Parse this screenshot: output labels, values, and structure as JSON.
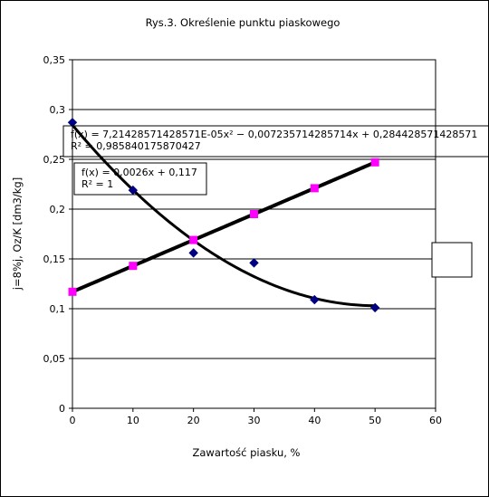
{
  "chart_data": {
    "type": "scatter",
    "title": "Rys.3.    Określenie punktu piaskowego",
    "xlabel": "Zawartość piasku, %",
    "ylabel": "j=8%j, Oz/K  [dm3/kg]",
    "xlim": [
      0,
      60
    ],
    "ylim": [
      0,
      0.35
    ],
    "x_ticks": [
      "0",
      "10",
      "20",
      "30",
      "40",
      "50",
      "60"
    ],
    "y_ticks": [
      "0",
      "0,05",
      "0,1",
      "0,15",
      "0,2",
      "0,25",
      "0,3",
      "0,35"
    ],
    "grid": "horizontal",
    "legend": "right (empty box)",
    "series": [
      {
        "marker": "diamond",
        "color": "#000080",
        "x": [
          0,
          10,
          20,
          30,
          40,
          50
        ],
        "y": [
          0.287,
          0.219,
          0.156,
          0.146,
          0.109,
          0.101
        ],
        "trendline": {
          "type": "polynomial",
          "coefficients": [
            7.21428571428571e-05,
            -0.00723571428571429,
            0.284428571428571
          ],
          "equation": "f(x) = 7,21428571428571E-05x² − 0,007235714285714x + 0,284428571428571",
          "r2": "R² = 0,985840175870427"
        }
      },
      {
        "marker": "square",
        "color": "#ff00ff",
        "x": [
          0,
          10,
          20,
          30,
          40,
          50
        ],
        "y": [
          0.117,
          0.143,
          0.169,
          0.195,
          0.221,
          0.247
        ],
        "trendline": {
          "type": "linear",
          "coefficients": [
            0.0026,
            0.117
          ],
          "equation": "f(x) = 0,0026x + 0,117",
          "r2": "R² = 1"
        }
      }
    ]
  }
}
